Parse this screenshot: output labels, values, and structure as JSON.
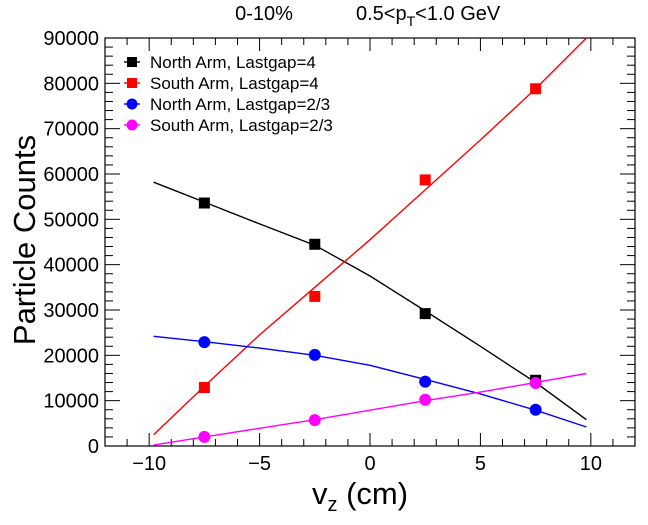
{
  "chart_data": {
    "type": "scatter",
    "title": {
      "centrality": "0-10%",
      "pt_range": {
        "pre": "0.5<p",
        "sub": "T",
        "post": "<1.0 GeV"
      }
    },
    "xlabel": {
      "main": "v",
      "sub": "z",
      "post": " (cm)"
    },
    "ylabel": "Particle Counts",
    "xlim": [
      -12,
      12
    ],
    "ylim": [
      0,
      90000
    ],
    "x_ticks": [
      -10,
      -5,
      0,
      5,
      10
    ],
    "x_tick_labels": [
      "−10",
      "−5",
      "0",
      "5",
      "10"
    ],
    "y_ticks": [
      0,
      10000,
      20000,
      30000,
      40000,
      50000,
      60000,
      70000,
      80000,
      90000
    ],
    "y_tick_labels": [
      "0",
      "10000",
      "20000",
      "30000",
      "40000",
      "50000",
      "60000",
      "70000",
      "80000",
      "90000"
    ],
    "grid": false,
    "legend_position": "top-left",
    "series": [
      {
        "name": "North Arm, Lastgap=4",
        "marker": "square",
        "color": "#000000",
        "x": [
          -7.5,
          -2.5,
          2.5,
          7.5
        ],
        "y": [
          53600,
          44500,
          29200,
          14500
        ],
        "fit": {
          "x_range": [
            -9.8,
            9.8
          ],
          "points": [
            [
              -9.8,
              58200
            ],
            [
              -7.5,
              53800
            ],
            [
              -5,
              49000
            ],
            [
              -2.5,
              44300
            ],
            [
              0,
              37500
            ],
            [
              2.5,
              29800
            ],
            [
              5,
              22000
            ],
            [
              7.5,
              14000
            ],
            [
              9.8,
              5800
            ]
          ]
        }
      },
      {
        "name": "South Arm, Lastgap=4",
        "marker": "square",
        "color": "#ff0000",
        "x": [
          -7.5,
          -2.5,
          2.5,
          7.5
        ],
        "y": [
          12900,
          33000,
          58700,
          78800
        ],
        "fit": {
          "x_range": [
            -9.8,
            9.8
          ],
          "points": [
            [
              -9.8,
              2500
            ],
            [
              -7.5,
              13200
            ],
            [
              -5,
              24500
            ],
            [
              -2.5,
              35000
            ],
            [
              0,
              45500
            ],
            [
              2.5,
              56500
            ],
            [
              5,
              67500
            ],
            [
              7.5,
              78800
            ],
            [
              9.8,
              90000
            ]
          ]
        }
      },
      {
        "name": "North Arm, Lastgap=2/3",
        "marker": "circle",
        "color": "#0000ff",
        "x": [
          -7.5,
          -2.5,
          2.5,
          7.5
        ],
        "y": [
          22900,
          20100,
          14200,
          8000
        ],
        "fit": {
          "x_range": [
            -9.8,
            9.8
          ],
          "points": [
            [
              -9.8,
              24200
            ],
            [
              -7.5,
              23000
            ],
            [
              -5,
              21600
            ],
            [
              -2.5,
              20000
            ],
            [
              0,
              17800
            ],
            [
              2.5,
              14700
            ],
            [
              5,
              11500
            ],
            [
              7.5,
              7900
            ],
            [
              9.8,
              4200
            ]
          ]
        }
      },
      {
        "name": "South Arm, Lastgap=2/3",
        "marker": "circle",
        "color": "#ff00ff",
        "x": [
          -7.5,
          -2.5,
          2.5,
          7.5
        ],
        "y": [
          2000,
          5700,
          10200,
          13900
        ],
        "fit": {
          "x_range": [
            -9.8,
            9.8
          ],
          "points": [
            [
              -9.8,
              200
            ],
            [
              -7.5,
              2000
            ],
            [
              -5,
              3900
            ],
            [
              -2.5,
              5800
            ],
            [
              0,
              7900
            ],
            [
              2.5,
              10000
            ],
            [
              5,
              11900
            ],
            [
              7.5,
              14000
            ],
            [
              9.8,
              16000
            ]
          ]
        }
      }
    ]
  }
}
